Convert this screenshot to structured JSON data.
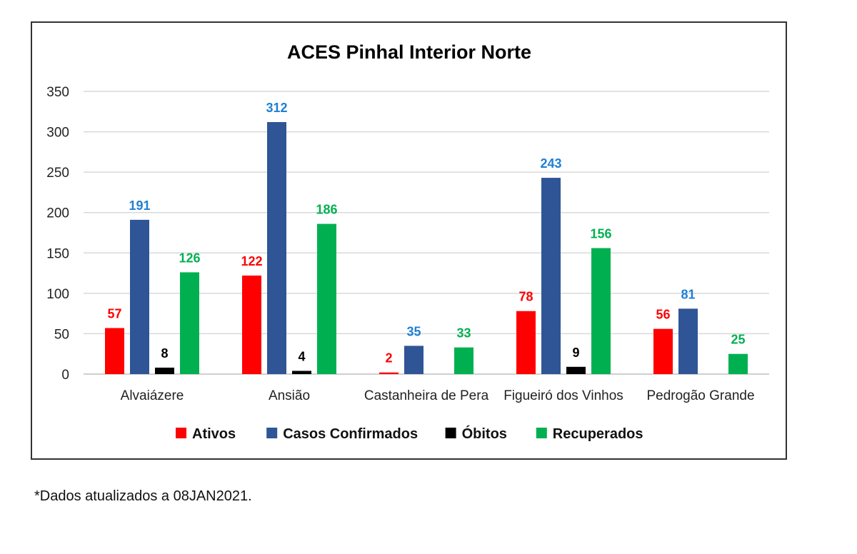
{
  "chart_data": {
    "type": "bar",
    "title": "ACES Pinhal Interior Norte",
    "categories": [
      "Alvaiázere",
      "Ansião",
      "Castanheira de Pera",
      "Figueiró dos Vinhos",
      "Pedrogão Grande"
    ],
    "series": [
      {
        "name": "Ativos",
        "color": "#ff0000",
        "values": [
          57,
          122,
          2,
          78,
          56
        ]
      },
      {
        "name": "Casos Confirmados",
        "color": "#2f5597",
        "label_color": "#1f7fd4",
        "values": [
          191,
          312,
          35,
          243,
          81
        ]
      },
      {
        "name": "Óbitos",
        "color": "#000000",
        "values": [
          8,
          4,
          null,
          9,
          null
        ]
      },
      {
        "name": "Recuperados",
        "color": "#00b050",
        "values": [
          126,
          186,
          33,
          156,
          25
        ]
      }
    ],
    "ylim": [
      0,
      350
    ],
    "yticks": [
      0,
      50,
      100,
      150,
      200,
      250,
      300,
      350
    ],
    "grid": true,
    "legend_position": "bottom"
  },
  "footnote": "*Dados atualizados a 08JAN2021."
}
